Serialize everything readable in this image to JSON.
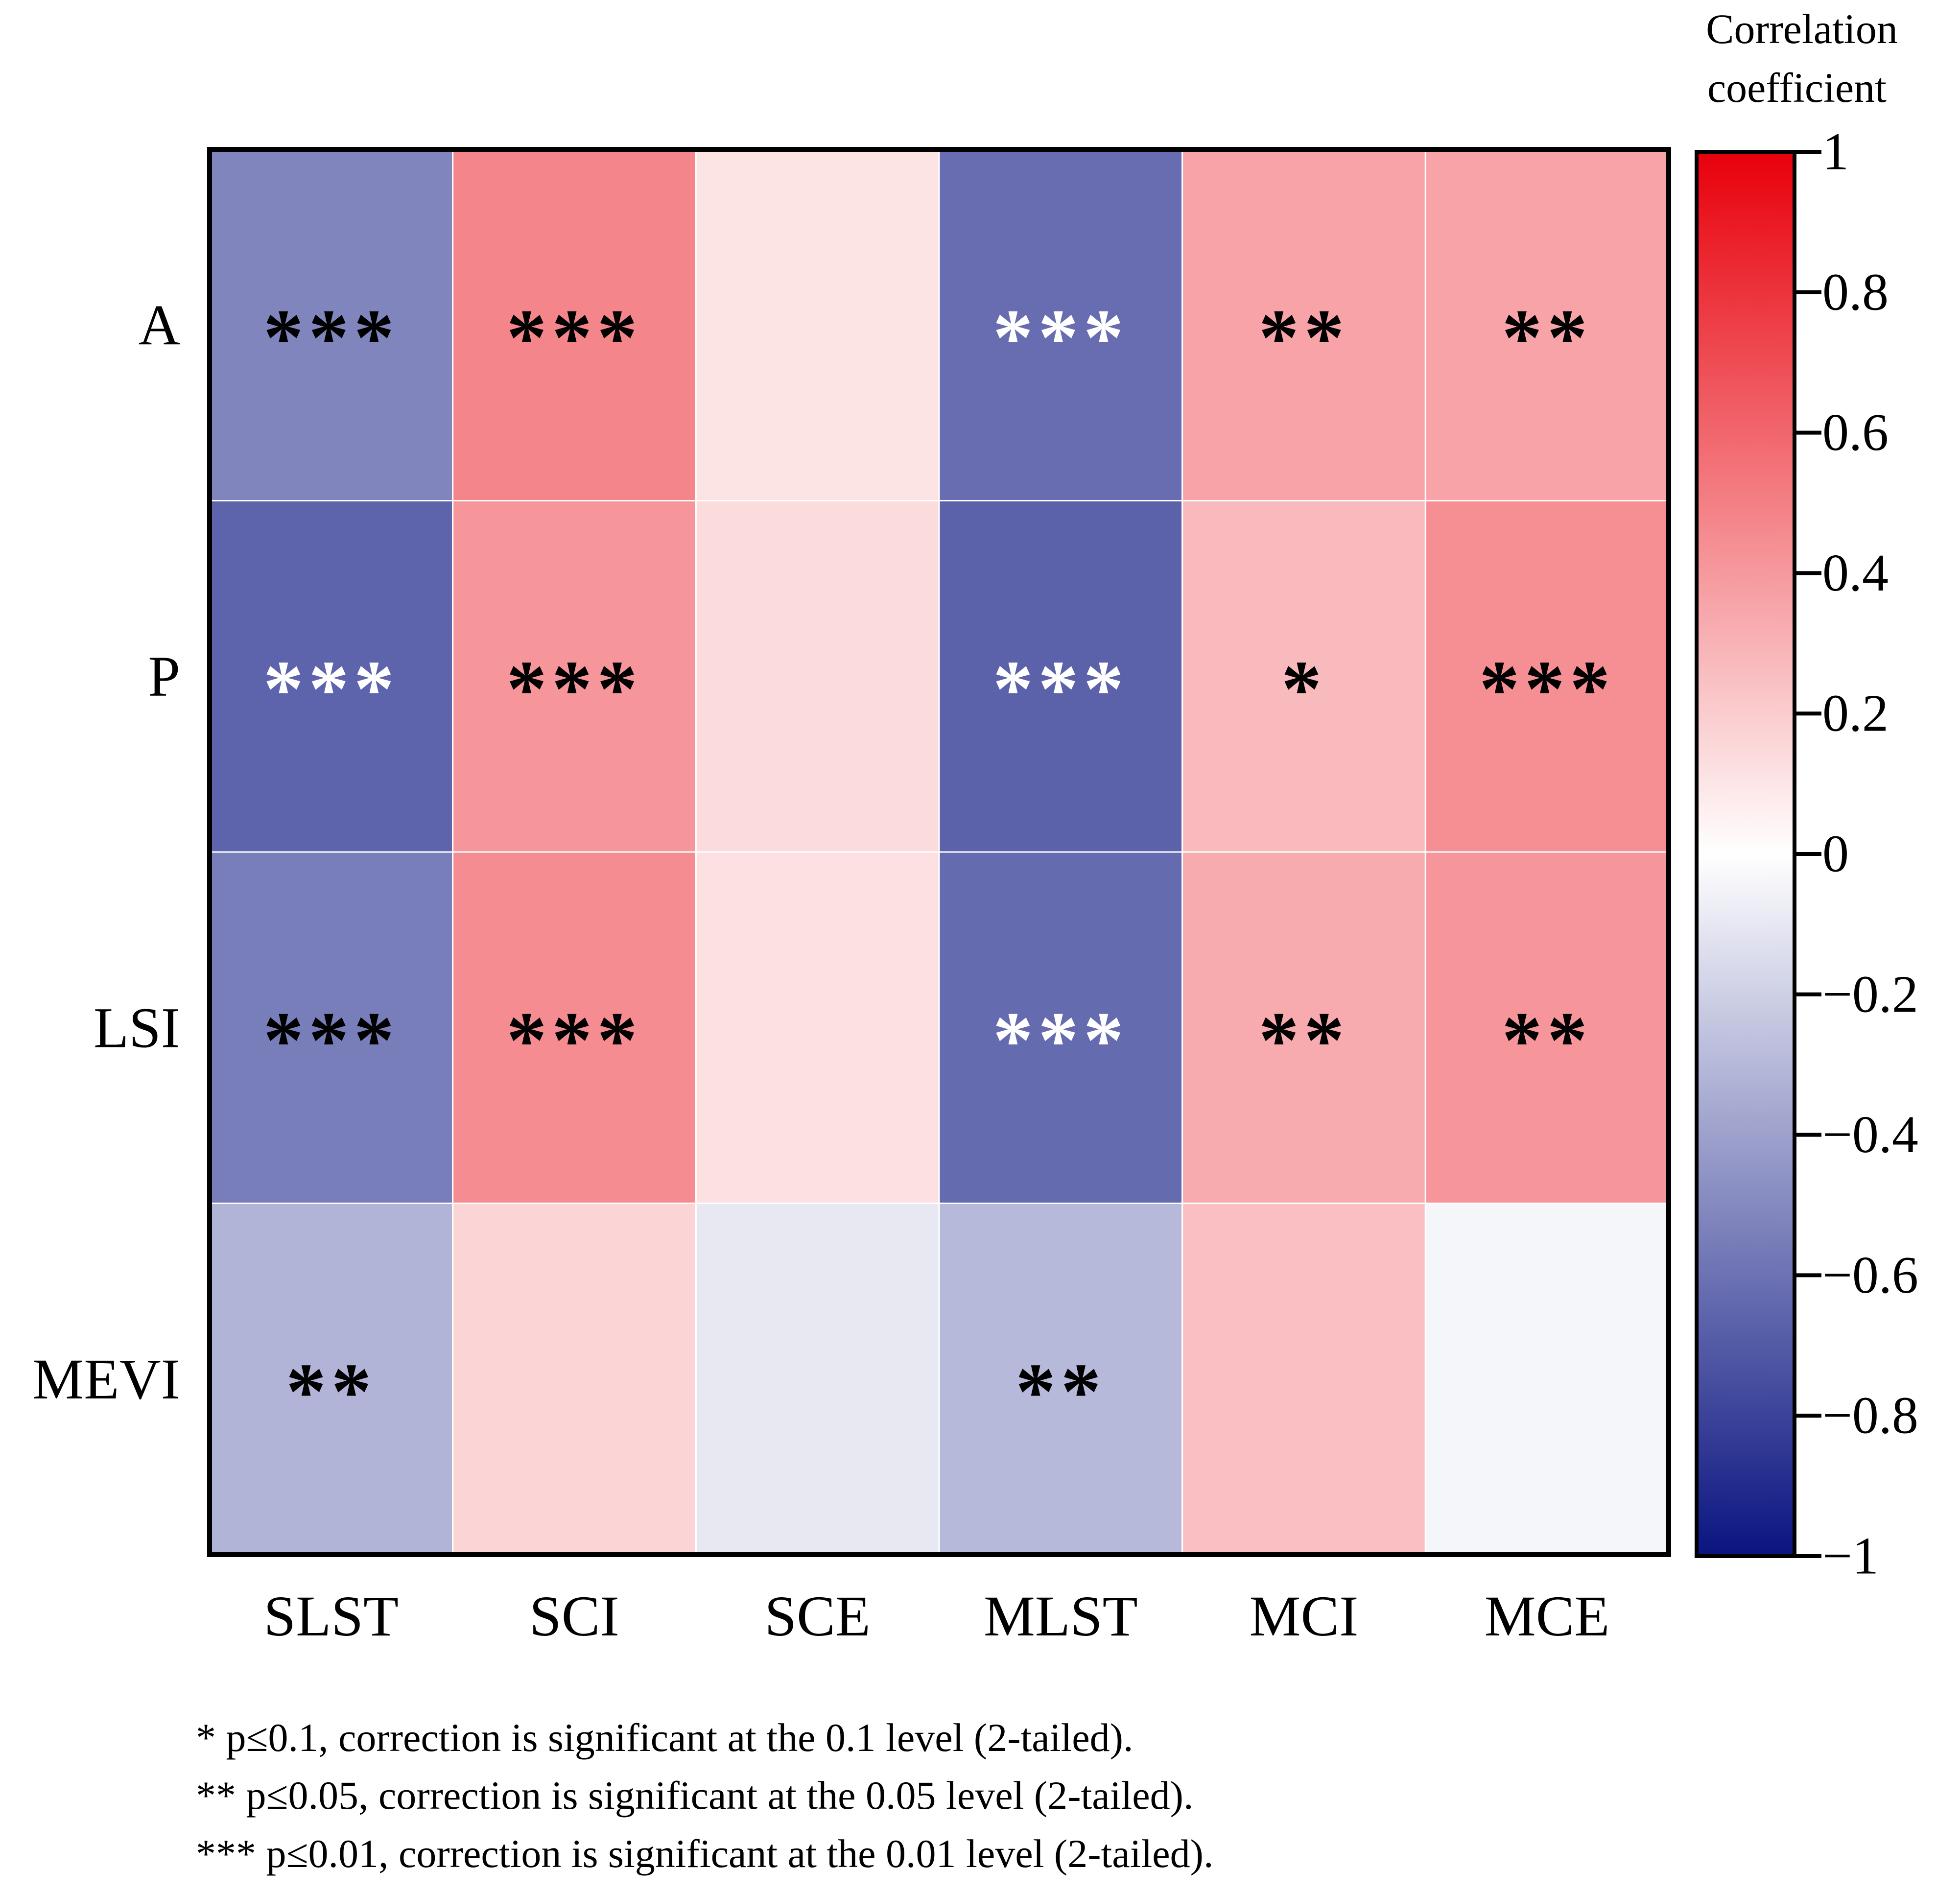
{
  "chart_data": {
    "type": "heatmap",
    "rows": [
      "A",
      "P",
      "LSI",
      "MEVI"
    ],
    "columns": [
      "SLST",
      "SCI",
      "SCE",
      "MLST",
      "MCI",
      "MCE"
    ],
    "values": [
      [
        -0.52,
        0.48,
        0.11,
        -0.62,
        0.36,
        0.36
      ],
      [
        -0.66,
        0.41,
        0.14,
        -0.67,
        0.27,
        0.44
      ],
      [
        -0.55,
        0.45,
        0.12,
        -0.63,
        0.33,
        0.41
      ],
      [
        -0.32,
        0.17,
        -0.1,
        -0.3,
        0.25,
        -0.04
      ]
    ],
    "significance": [
      [
        "***",
        "***",
        "",
        "***",
        "**",
        "**"
      ],
      [
        "***",
        "***",
        "",
        "***",
        "*",
        "***"
      ],
      [
        "***",
        "***",
        "",
        "***",
        "**",
        "**"
      ],
      [
        "**",
        "",
        "",
        "**",
        "",
        ""
      ]
    ],
    "colorbar": {
      "title_line1": "Correlation",
      "title_line2": "coefficient",
      "range": [
        -1,
        1
      ],
      "ticks": [
        1,
        0.8,
        0.6,
        0.4,
        0.2,
        0,
        -0.2,
        -0.4,
        -0.6,
        -0.8,
        -1
      ],
      "tick_labels": [
        "1",
        "0.8",
        "0.6",
        "0.4",
        "0.2",
        "0",
        "−0.2",
        "−0.4",
        "−0.6",
        "−0.8",
        "−1"
      ],
      "colors": {
        "negative_end": "#0a1480",
        "mid": "#ffffff",
        "positive_end": "#e8000b"
      }
    },
    "legend_notes": [
      "* p≤0.1, correction is significant at the 0.1 level (2-tailed).",
      "** p≤0.05, correction is significant at the 0.05 level (2-tailed).",
      "*** p≤0.01, correction is significant at the 0.01 level (2-tailed)."
    ]
  }
}
